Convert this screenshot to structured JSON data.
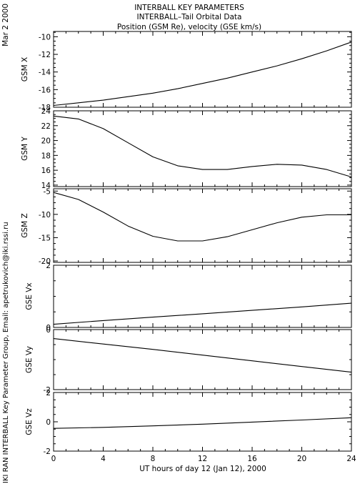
{
  "header": {
    "title_line1": "INTERBALL KEY PARAMETERS",
    "title_line2": "INTERBALL–Tail Orbital Data",
    "title_line3": "Position (GSM Re), velocity (GSE km/s)"
  },
  "side": {
    "date": "Mar  2 2000",
    "credit": "IKI RAN INTERBALL Key Parameter Group, Email: apetrukovich@iki.rssi.ru"
  },
  "xaxis": {
    "label": "UT hours of day  12 (Jan 12), 2000",
    "ticks": [
      "0",
      "4",
      "8",
      "12",
      "16",
      "20",
      "24"
    ]
  },
  "chart_data": [
    {
      "type": "line",
      "ylabel": "GSM X",
      "xlim": [
        0,
        24
      ],
      "ylim": [
        -18,
        -9.4
      ],
      "yticks": [
        -18,
        -16,
        -14,
        -12,
        -10
      ],
      "x": [
        0,
        2,
        4,
        6,
        8,
        10,
        12,
        14,
        16,
        18,
        20,
        22,
        24
      ],
      "series": [
        {
          "values": [
            -17.8,
            -17.5,
            -17.2,
            -16.8,
            -16.4,
            -15.9,
            -15.3,
            -14.7,
            -14.0,
            -13.3,
            -12.5,
            -11.6,
            -10.6
          ]
        }
      ]
    },
    {
      "type": "line",
      "ylabel": "GSM Y",
      "xlim": [
        0,
        24
      ],
      "ylim": [
        13.8,
        24
      ],
      "yticks": [
        14,
        16,
        18,
        20,
        22,
        24
      ],
      "x": [
        0,
        2,
        4,
        6,
        8,
        10,
        12,
        14,
        16,
        18,
        20,
        22,
        24
      ],
      "series": [
        {
          "values": [
            23.3,
            22.9,
            21.6,
            19.7,
            17.8,
            16.6,
            16.1,
            16.1,
            16.5,
            16.8,
            16.7,
            16.1,
            15.1
          ]
        }
      ]
    },
    {
      "type": "line",
      "ylabel": "GSM Z",
      "xlim": [
        0,
        24
      ],
      "ylim": [
        -20.3,
        -4.5
      ],
      "yticks": [
        -20,
        -15,
        -10,
        -5
      ],
      "x": [
        0,
        2,
        4,
        6,
        8,
        10,
        12,
        14,
        16,
        18,
        20,
        22,
        24
      ],
      "series": [
        {
          "values": [
            -5.3,
            -6.8,
            -9.5,
            -12.5,
            -14.7,
            -15.7,
            -15.7,
            -14.8,
            -13.3,
            -11.8,
            -10.6,
            -10.1,
            -10.1
          ]
        }
      ]
    },
    {
      "type": "line",
      "ylabel": "GSE Vx",
      "xlim": [
        0,
        24
      ],
      "ylim": [
        0,
        2
      ],
      "yticks": [
        0,
        2
      ],
      "x": [
        0,
        4,
        8,
        12,
        16,
        20,
        24
      ],
      "series": [
        {
          "values": [
            0.1,
            0.22,
            0.33,
            0.44,
            0.55,
            0.66,
            0.78
          ]
        }
      ]
    },
    {
      "type": "line",
      "ylabel": "GSE Vy",
      "xlim": [
        0,
        24
      ],
      "ylim": [
        -2,
        0
      ],
      "yticks": [
        -2,
        0
      ],
      "x": [
        0,
        4,
        8,
        12,
        16,
        20,
        24
      ],
      "series": [
        {
          "values": [
            -0.3,
            -0.48,
            -0.66,
            -0.85,
            -1.04,
            -1.23,
            -1.42
          ]
        }
      ]
    },
    {
      "type": "line",
      "ylabel": "GSE Vz",
      "xlim": [
        0,
        24
      ],
      "ylim": [
        -2,
        2
      ],
      "yticks": [
        -2,
        0,
        2
      ],
      "x": [
        0,
        4,
        8,
        12,
        16,
        20,
        24
      ],
      "series": [
        {
          "values": [
            -0.45,
            -0.38,
            -0.28,
            -0.16,
            -0.02,
            0.12,
            0.28
          ]
        }
      ]
    }
  ]
}
